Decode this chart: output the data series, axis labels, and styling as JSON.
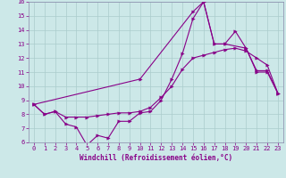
{
  "xlabel": "Windchill (Refroidissement éolien,°C)",
  "bg_color": "#cce8e8",
  "line_color": "#880088",
  "grid_color": "#aacccc",
  "spine_color": "#8888aa",
  "xlim": [
    -0.5,
    23.5
  ],
  "ylim": [
    6,
    16
  ],
  "xticks": [
    0,
    1,
    2,
    3,
    4,
    5,
    6,
    7,
    8,
    9,
    10,
    11,
    12,
    13,
    14,
    15,
    16,
    17,
    18,
    19,
    20,
    21,
    22,
    23
  ],
  "yticks": [
    6,
    7,
    8,
    9,
    10,
    11,
    12,
    13,
    14,
    15,
    16
  ],
  "line1_x": [
    0,
    1,
    2,
    3,
    4,
    5,
    6,
    7,
    8,
    9,
    10,
    11,
    12,
    13,
    14,
    15,
    16,
    17,
    18,
    19,
    20,
    21,
    22,
    23
  ],
  "line1_y": [
    8.7,
    8.0,
    8.2,
    7.3,
    7.1,
    5.8,
    6.5,
    6.3,
    7.5,
    7.5,
    8.1,
    8.2,
    9.0,
    10.5,
    12.3,
    14.8,
    16.0,
    13.0,
    13.0,
    13.9,
    12.7,
    11.1,
    11.1,
    9.5
  ],
  "line2_x": [
    0,
    1,
    2,
    3,
    4,
    5,
    6,
    7,
    8,
    9,
    10,
    11,
    12,
    13,
    14,
    15,
    16,
    17,
    18,
    19,
    20,
    21,
    22,
    23
  ],
  "line2_y": [
    8.7,
    8.0,
    8.2,
    7.8,
    7.8,
    7.8,
    7.9,
    8.0,
    8.1,
    8.1,
    8.2,
    8.5,
    9.2,
    10.0,
    11.2,
    12.0,
    12.2,
    12.4,
    12.6,
    12.7,
    12.5,
    12.0,
    11.5,
    9.5
  ],
  "line3_x": [
    0,
    10,
    15,
    16,
    17,
    18,
    20,
    21,
    22,
    23
  ],
  "line3_y": [
    8.7,
    10.5,
    15.3,
    16.0,
    13.0,
    13.0,
    12.7,
    11.0,
    11.0,
    9.5
  ],
  "tick_fontsize": 5.0,
  "xlabel_fontsize": 5.5,
  "marker_size": 2.5,
  "line_width": 0.8
}
